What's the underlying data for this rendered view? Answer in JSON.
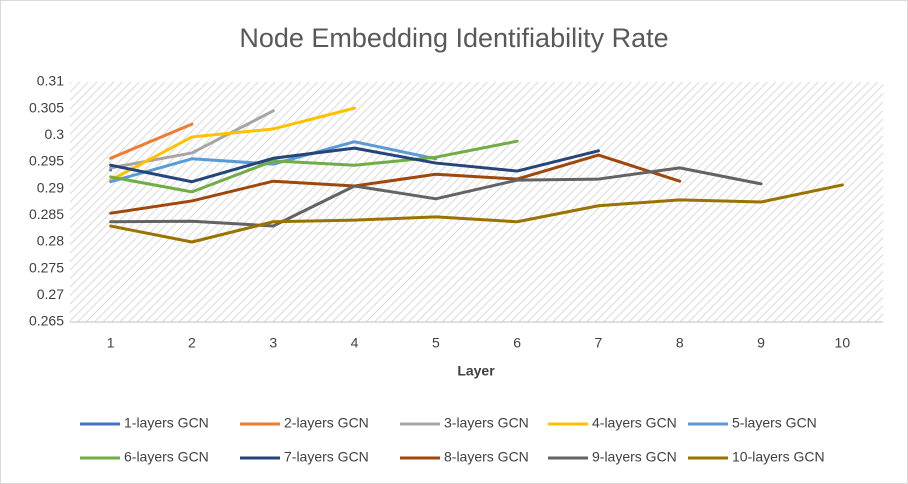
{
  "chart_data": {
    "type": "line",
    "title": "Node Embedding Identifiability Rate",
    "x_label": "Layer",
    "categories": [
      "1",
      "2",
      "3",
      "4",
      "5",
      "6",
      "7",
      "8",
      "9",
      "10"
    ],
    "ylim": [
      0.265,
      0.31
    ],
    "yticks": [
      0.265,
      0.27,
      0.275,
      0.28,
      0.285,
      0.29,
      0.295,
      0.3,
      0.305,
      0.31
    ],
    "grid": false,
    "legend": "bottom",
    "series": [
      {
        "name": "1-layers GCN",
        "color": "#4472c4",
        "values": [
          0.2935,
          null,
          null,
          null,
          null,
          null,
          null,
          null,
          null,
          null
        ]
      },
      {
        "name": "2-layers GCN",
        "color": "#ed7d31",
        "values": [
          0.2957,
          0.3021,
          null,
          null,
          null,
          null,
          null,
          null,
          null,
          null
        ]
      },
      {
        "name": "3-layers GCN",
        "color": "#a5a5a5",
        "values": [
          0.2939,
          0.2967,
          0.3046,
          null,
          null,
          null,
          null,
          null,
          null,
          null
        ]
      },
      {
        "name": "4-layers GCN",
        "color": "#ffc000",
        "values": [
          0.2916,
          0.2997,
          0.3012,
          0.3051,
          null,
          null,
          null,
          null,
          null,
          null
        ]
      },
      {
        "name": "5-layers GCN",
        "color": "#5b9bd5",
        "values": [
          0.2913,
          0.2956,
          0.2946,
          0.2988,
          0.2956,
          null,
          null,
          null,
          null,
          null
        ]
      },
      {
        "name": "6-layers GCN",
        "color": "#70ad47",
        "values": [
          0.2922,
          0.2894,
          0.2952,
          0.2944,
          0.2959,
          0.2989,
          null,
          null,
          null,
          null
        ]
      },
      {
        "name": "7-layers GCN",
        "color": "#264478",
        "values": [
          0.2944,
          0.2913,
          0.2957,
          0.2976,
          0.2948,
          0.2933,
          0.2971,
          null,
          null,
          null
        ]
      },
      {
        "name": "8-layers GCN",
        "color": "#9e480e",
        "values": [
          0.2854,
          0.2877,
          0.2914,
          0.2905,
          0.2927,
          0.2918,
          0.2963,
          0.2914,
          null,
          null
        ]
      },
      {
        "name": "9-layers GCN",
        "color": "#636363",
        "values": [
          0.2838,
          0.2839,
          0.283,
          0.2905,
          0.2881,
          0.2916,
          0.2918,
          0.2939,
          0.2909,
          null
        ]
      },
      {
        "name": "10-layers GCN",
        "color": "#997300",
        "values": [
          0.283,
          0.28,
          0.2838,
          0.2841,
          0.2847,
          0.2838,
          0.2868,
          0.2879,
          0.2875,
          0.2907
        ]
      }
    ]
  }
}
